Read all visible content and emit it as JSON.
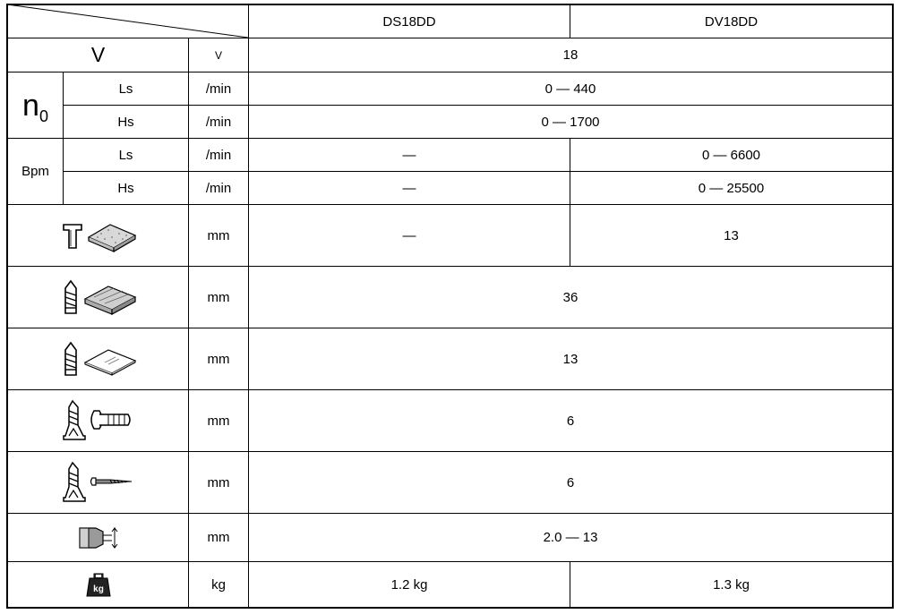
{
  "header": {
    "model_1": "DS18DD",
    "model_2": "DV18DD"
  },
  "voltage": {
    "symbol": "V",
    "unit": "V",
    "value": "18"
  },
  "no_load_speed": {
    "symbol": "n",
    "subscript": "0",
    "low": {
      "label": "Ls",
      "unit": "/min",
      "value": "0 — 440"
    },
    "high": {
      "label": "Hs",
      "unit": "/min",
      "value": "0 — 1700"
    }
  },
  "impact_rate": {
    "symbol": "Bpm",
    "low": {
      "label": "Ls",
      "unit": "/min",
      "ds18dd": "—",
      "dv18dd": "0 — 6600"
    },
    "high": {
      "label": "Hs",
      "unit": "/min",
      "ds18dd": "—",
      "dv18dd": "0 — 25500"
    }
  },
  "rows": [
    {
      "icon": "hammer-concrete-icon",
      "unit": "mm",
      "ds18dd": "—",
      "dv18dd": "13"
    },
    {
      "icon": "drill-wood-icon",
      "unit": "mm",
      "value": "36"
    },
    {
      "icon": "drill-steel-icon",
      "unit": "mm",
      "value": "13"
    },
    {
      "icon": "screwdriver-bolt-icon",
      "unit": "mm",
      "value": "6"
    },
    {
      "icon": "screwdriver-wood-screw-icon",
      "unit": "mm",
      "value": "6"
    },
    {
      "icon": "chuck-capacity-icon",
      "unit": "mm",
      "value": "2.0 — 13"
    }
  ],
  "weight": {
    "icon": "weight-kg-icon",
    "icon_text": "kg",
    "unit": "kg",
    "ds18dd": "1.2 kg",
    "dv18dd": "1.3 kg"
  }
}
